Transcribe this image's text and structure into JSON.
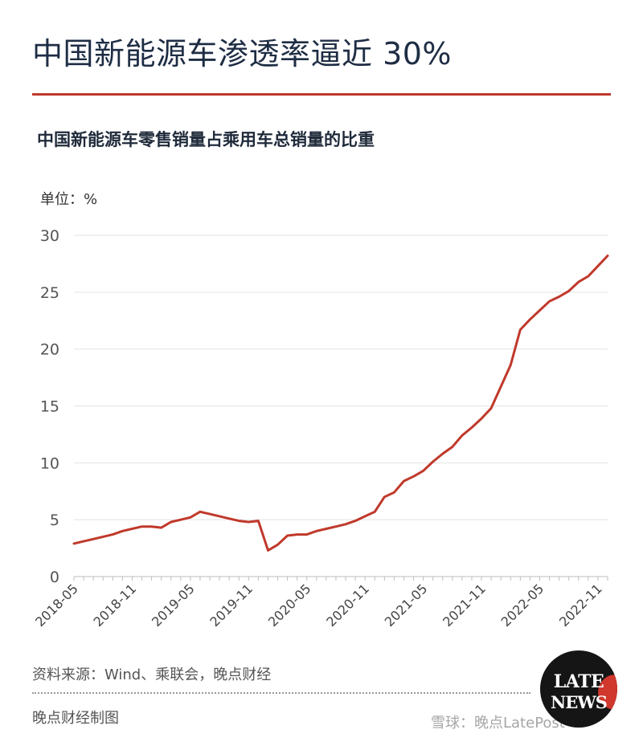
{
  "headline": "中国新能源车渗透率逼近 30%",
  "footer": {
    "source": "资料来源：Wind、乘联会，晚点财经",
    "credit": "晚点财经制图",
    "logo_line1": "LATE",
    "logo_line2": "NEWS",
    "watermark": "雪球：晚点LatePost"
  },
  "colors": {
    "line": "#c0392b",
    "rule": "#c0392b",
    "grid": "#e2e2e2",
    "text": "#1f2a3a"
  },
  "chart_data": {
    "type": "line",
    "title": "中国新能源车零售销量占乘用车总销量的比重",
    "unit_label": "单位：%",
    "ylim": [
      0,
      30
    ],
    "yticks": [
      0,
      5,
      10,
      15,
      20,
      25,
      30
    ],
    "grid": true,
    "xtick_labels": [
      "2018-05",
      "2018-11",
      "2019-05",
      "2019-11",
      "2020-05",
      "2020-11",
      "2021-05",
      "2021-11",
      "2022-05",
      "2022-11"
    ],
    "series": [
      {
        "x": [
          "2018-05",
          "2018-06",
          "2018-07",
          "2018-08",
          "2018-09",
          "2018-10",
          "2018-11",
          "2018-12",
          "2019-01",
          "2019-02",
          "2019-03",
          "2019-04",
          "2019-05",
          "2019-06",
          "2019-07",
          "2019-08",
          "2019-09",
          "2019-10",
          "2019-11",
          "2019-12",
          "2020-01",
          "2020-02",
          "2020-03",
          "2020-04",
          "2020-05",
          "2020-06",
          "2020-07",
          "2020-08",
          "2020-09",
          "2020-10",
          "2020-11",
          "2020-12",
          "2021-01",
          "2021-02",
          "2021-03",
          "2021-04",
          "2021-05",
          "2021-06",
          "2021-07",
          "2021-08",
          "2021-09",
          "2021-10",
          "2021-11",
          "2021-12",
          "2022-01",
          "2022-02",
          "2022-03",
          "2022-04",
          "2022-05",
          "2022-06",
          "2022-07",
          "2022-08",
          "2022-09",
          "2022-10",
          "2022-11",
          "2022-12"
        ],
        "values": [
          2.9,
          3.1,
          3.3,
          3.5,
          3.7,
          4.0,
          4.2,
          4.4,
          4.4,
          4.3,
          4.8,
          5.0,
          5.2,
          5.7,
          5.5,
          5.3,
          5.1,
          4.9,
          4.8,
          4.9,
          2.3,
          2.8,
          3.6,
          3.7,
          3.7,
          4.0,
          4.2,
          4.4,
          4.6,
          4.9,
          5.3,
          5.7,
          7.0,
          7.4,
          8.4,
          8.8,
          9.3,
          10.1,
          10.8,
          11.4,
          12.4,
          13.1,
          13.9,
          14.8,
          16.7,
          18.6,
          21.7,
          22.6,
          23.4,
          24.2,
          24.6,
          25.1,
          25.9,
          26.4,
          27.3,
          28.2
        ]
      }
    ]
  }
}
